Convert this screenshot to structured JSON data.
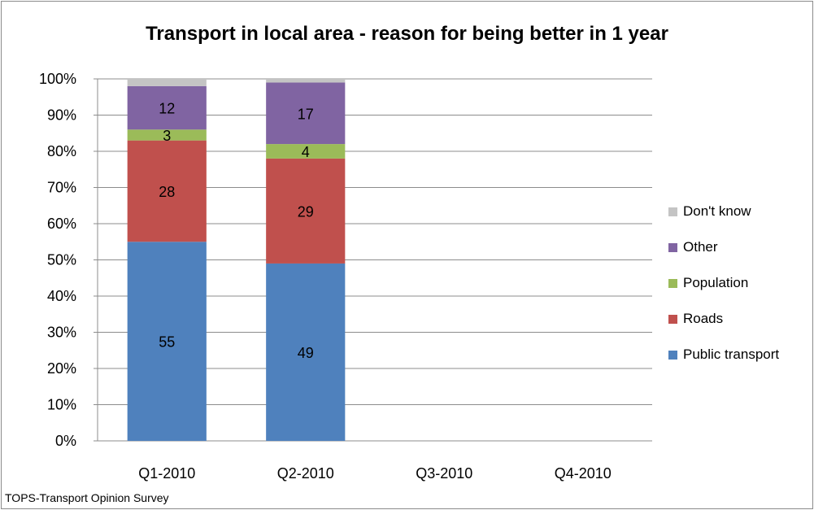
{
  "chart_data": {
    "type": "bar",
    "stacked": true,
    "percent": true,
    "title": "Transport in local area - reason for being better in 1 year",
    "source": "TOPS-Transport Opinion Survey",
    "categories": [
      "Q1-2010",
      "Q2-2010",
      "Q3-2010",
      "Q4-2010"
    ],
    "series": [
      {
        "name": "Public transport",
        "color": "#4F81BD",
        "values": [
          55,
          49,
          null,
          null
        ]
      },
      {
        "name": "Roads",
        "color": "#C0504D",
        "values": [
          28,
          29,
          null,
          null
        ]
      },
      {
        "name": "Population",
        "color": "#9BBB59",
        "values": [
          3,
          4,
          null,
          null
        ]
      },
      {
        "name": "Other",
        "color": "#8064A2",
        "values": [
          12,
          17,
          null,
          null
        ]
      },
      {
        "name": "Don't know",
        "color": "#C4C4C4",
        "values": [
          2,
          1,
          null,
          null
        ]
      }
    ],
    "data_labels": [
      [
        55,
        28,
        3,
        12,
        null
      ],
      [
        49,
        29,
        4,
        17,
        null
      ],
      [
        null,
        null,
        null,
        null,
        null
      ],
      [
        null,
        null,
        null,
        null,
        null
      ]
    ],
    "ylim": [
      0,
      100
    ],
    "yticks": [
      "0%",
      "10%",
      "20%",
      "30%",
      "40%",
      "50%",
      "60%",
      "70%",
      "80%",
      "90%",
      "100%"
    ],
    "grid": true,
    "legend_position": "right",
    "legend_order": [
      "Don't know",
      "Other",
      "Population",
      "Roads",
      "Public transport"
    ]
  }
}
